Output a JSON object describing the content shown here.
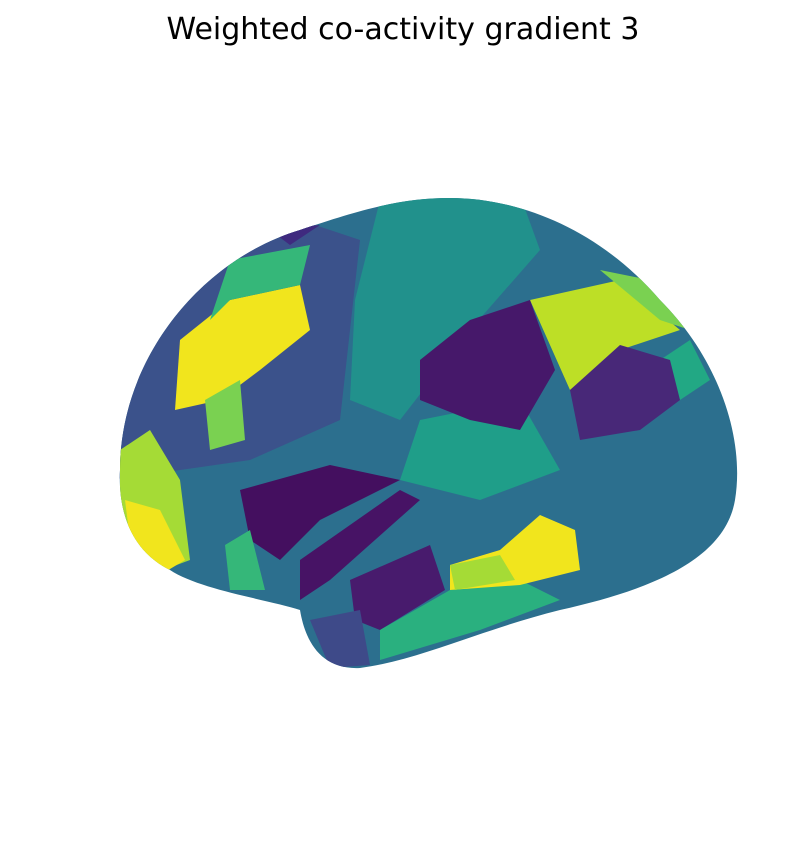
{
  "title": "Weighted co-activity gradient 3"
}
